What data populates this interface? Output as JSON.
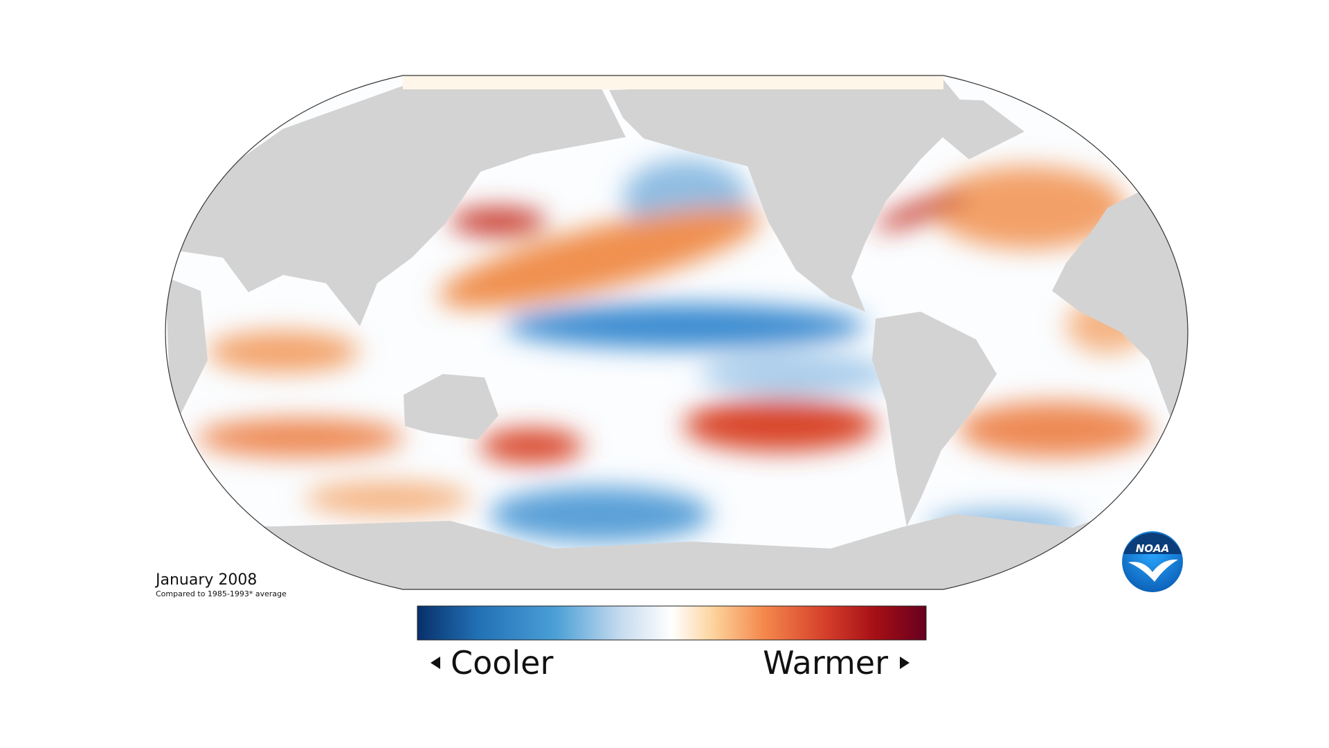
{
  "map": {
    "date": "January 2008",
    "caption": "Compared to 1985-1993* average",
    "legend": {
      "low_label": "Cooler",
      "high_label": "Warmer"
    },
    "logo": "NOAA"
  }
}
